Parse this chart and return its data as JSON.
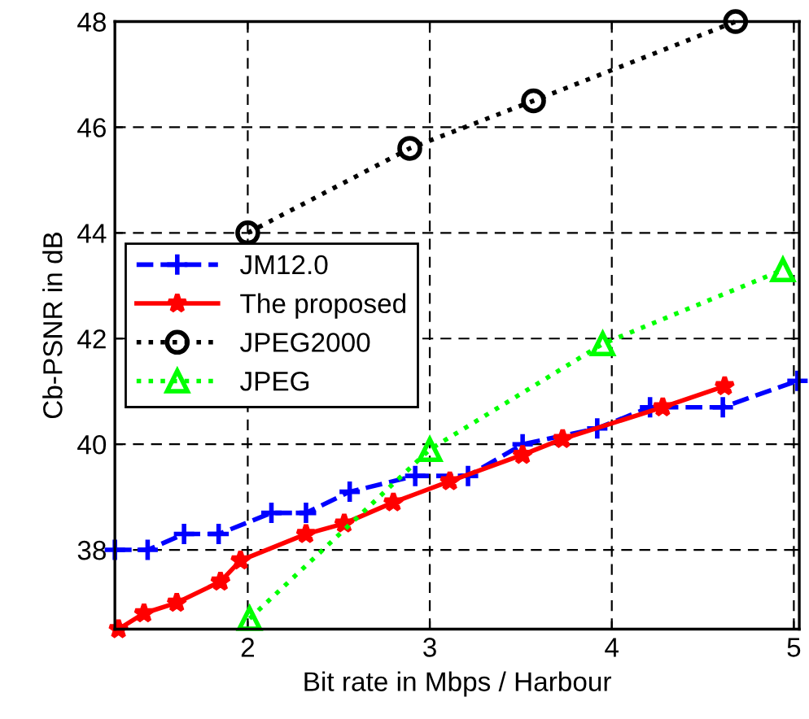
{
  "chart_data": {
    "type": "line",
    "xlabel": "Bit rate in Mbps / Harbour",
    "ylabel": "Cb-PSNR in dB",
    "xlim": [
      1.27,
      5.03
    ],
    "ylim": [
      36.5,
      48
    ],
    "xticks": [
      2,
      3,
      4,
      5
    ],
    "yticks": [
      38,
      40,
      42,
      44,
      46,
      48
    ],
    "grid": true,
    "legend": "left",
    "series": [
      {
        "name": "JM12.0",
        "color": "#0000ff",
        "marker": "cross",
        "line_style": "dashed",
        "x": [
          1.27,
          1.45,
          1.65,
          1.84,
          2.13,
          2.32,
          2.56,
          2.92,
          3.21,
          3.51,
          3.92,
          4.21,
          4.61,
          5.02
        ],
        "values": [
          38.0,
          38.0,
          38.3,
          38.3,
          38.7,
          38.7,
          39.1,
          39.4,
          39.4,
          40.0,
          40.3,
          40.7,
          40.7,
          41.2
        ]
      },
      {
        "name": "The proposed",
        "color": "#ff0000",
        "marker": "star",
        "line_style": "solid",
        "x": [
          1.29,
          1.43,
          1.61,
          1.85,
          1.96,
          2.32,
          2.53,
          2.8,
          3.11,
          3.51,
          3.73,
          4.28,
          4.62
        ],
        "values": [
          36.5,
          36.8,
          37.0,
          37.4,
          37.8,
          38.3,
          38.5,
          38.9,
          39.3,
          39.8,
          40.1,
          40.7,
          41.1
        ]
      },
      {
        "name": "JPEG2000",
        "color": "#000000",
        "marker": "circle",
        "line_style": "dotted",
        "x": [
          2.0,
          2.89,
          3.57,
          4.68
        ],
        "values": [
          44.0,
          45.6,
          46.5,
          48.0
        ]
      },
      {
        "name": "JPEG",
        "color": "#00ff00",
        "marker": "triangle",
        "line_style": "dotted",
        "x": [
          2.01,
          3.0,
          3.95,
          4.94
        ],
        "values": [
          36.7,
          39.9,
          41.9,
          43.3
        ]
      }
    ]
  }
}
